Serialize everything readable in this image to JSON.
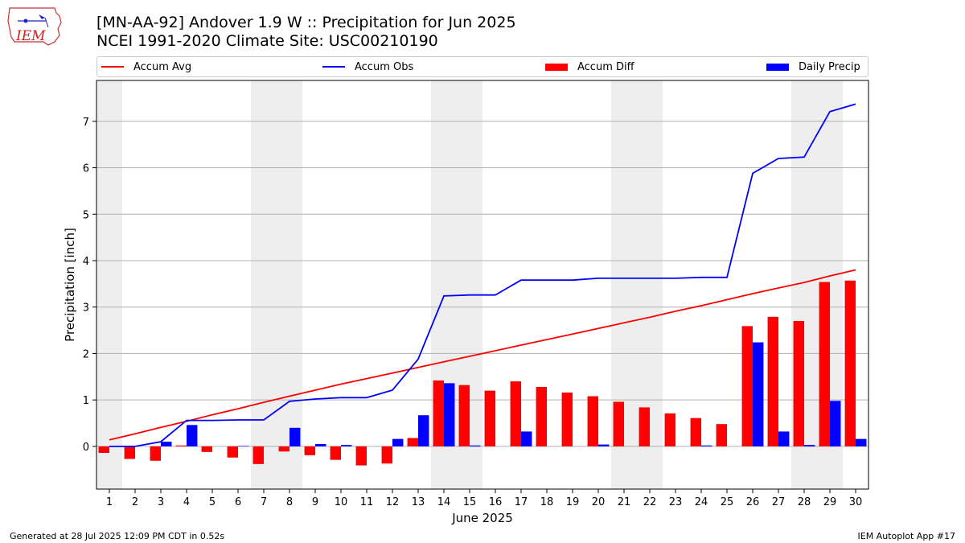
{
  "title": "[MN-AA-92] Andover 1.9 W :: Precipitation for Jun 2025",
  "subtitle": "NCEI 1991-2020 Climate Site: USC00210190",
  "logo_text": "IEM",
  "footer_left": "Generated at 28 Jul 2025 12:09 PM CDT in 0.52s",
  "footer_right": "IEM Autoplot App #17",
  "colors": {
    "avg": "#ff0000",
    "obs": "#0000ff",
    "diff": "#ff0000",
    "daily": "#0000ff",
    "weekend": "#eeeeee",
    "grid": "#b0b0b0"
  },
  "legend": [
    {
      "label": "Accum Avg",
      "kind": "line",
      "color": "#ff0000"
    },
    {
      "label": "Accum Obs",
      "kind": "line",
      "color": "#0000ff"
    },
    {
      "label": "Accum Diff",
      "kind": "bar",
      "color": "#ff0000"
    },
    {
      "label": "Daily Precip",
      "kind": "bar",
      "color": "#0000ff"
    }
  ],
  "chart_data": {
    "type": "bar",
    "title": "[MN-AA-92] Andover 1.9 W :: Precipitation for Jun 2025",
    "xlabel": "June 2025",
    "ylabel": "Precipitation [inch]",
    "xlim": [
      0.5,
      30.5
    ],
    "ylim": [
      -0.92,
      7.88
    ],
    "yticks": [
      0,
      1,
      2,
      3,
      4,
      5,
      6,
      7
    ],
    "grid": true,
    "legend_position": "top",
    "x": [
      1,
      2,
      3,
      4,
      5,
      6,
      7,
      8,
      9,
      10,
      11,
      12,
      13,
      14,
      15,
      16,
      17,
      18,
      19,
      20,
      21,
      22,
      23,
      24,
      25,
      26,
      27,
      28,
      29,
      30
    ],
    "weekend_ranges": [
      [
        0.5,
        1.5
      ],
      [
        6.5,
        8.5
      ],
      [
        13.5,
        15.5
      ],
      [
        20.5,
        22.5
      ],
      [
        27.5,
        29.5
      ]
    ],
    "series": [
      {
        "name": "Accum Avg",
        "kind": "line",
        "values": [
          0.14,
          0.27,
          0.41,
          0.54,
          0.68,
          0.81,
          0.95,
          1.08,
          1.21,
          1.34,
          1.46,
          1.58,
          1.7,
          1.82,
          1.94,
          2.06,
          2.18,
          2.3,
          2.42,
          2.54,
          2.66,
          2.78,
          2.91,
          3.03,
          3.16,
          3.29,
          3.41,
          3.53,
          3.67,
          3.8
        ]
      },
      {
        "name": "Accum Obs",
        "kind": "line",
        "values": [
          0.0,
          0.0,
          0.1,
          0.56,
          0.56,
          0.57,
          0.57,
          0.97,
          1.02,
          1.05,
          1.05,
          1.21,
          1.88,
          3.24,
          3.26,
          3.26,
          3.58,
          3.58,
          3.58,
          3.62,
          3.62,
          3.62,
          3.62,
          3.64,
          3.64,
          5.88,
          6.2,
          6.23,
          7.21,
          7.37
        ]
      },
      {
        "name": "Accum Diff",
        "kind": "bar",
        "values": [
          -0.14,
          -0.27,
          -0.31,
          0.02,
          -0.12,
          -0.24,
          -0.38,
          -0.11,
          -0.19,
          -0.29,
          -0.41,
          -0.37,
          0.18,
          1.42,
          1.32,
          1.2,
          1.4,
          1.28,
          1.16,
          1.08,
          0.96,
          0.84,
          0.71,
          0.61,
          0.48,
          2.59,
          2.79,
          2.7,
          3.54,
          3.57
        ]
      },
      {
        "name": "Daily Precip",
        "kind": "bar",
        "values": [
          0.0,
          0.0,
          0.1,
          0.46,
          0.0,
          0.01,
          0.0,
          0.4,
          0.05,
          0.03,
          0.0,
          0.16,
          0.67,
          1.36,
          0.02,
          0.0,
          0.32,
          0.0,
          0.0,
          0.04,
          0.0,
          0.0,
          0.0,
          0.02,
          0.0,
          2.24,
          0.32,
          0.03,
          0.98,
          0.16
        ]
      }
    ]
  }
}
